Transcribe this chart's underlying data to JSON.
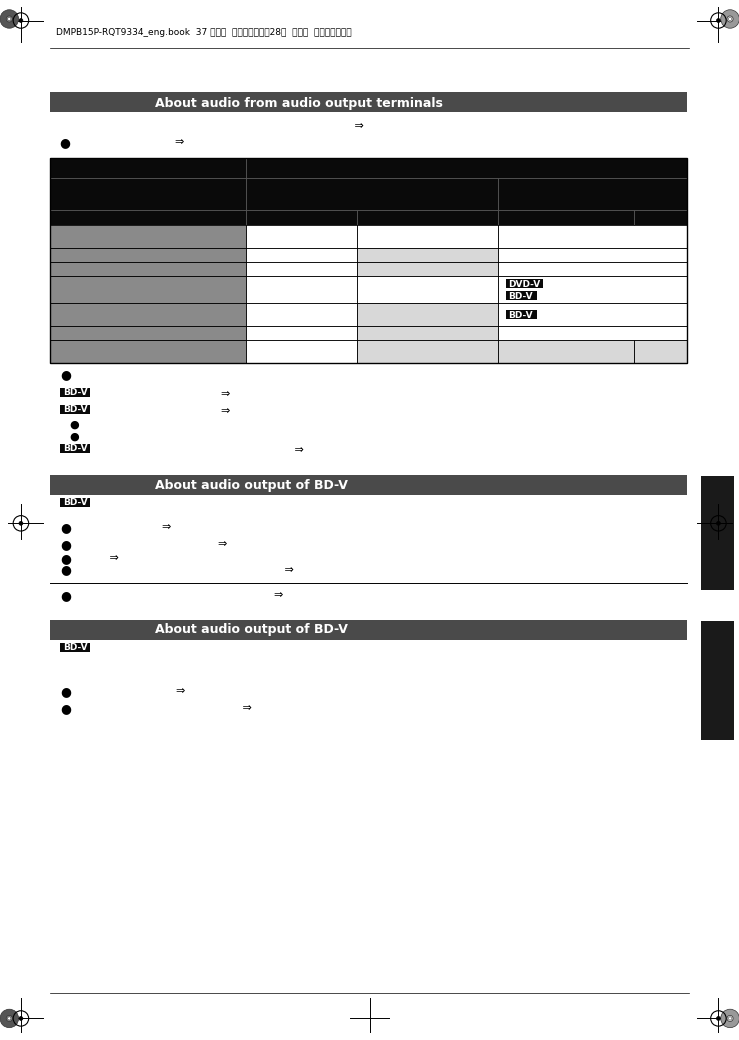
{
  "page_header": "DMPB15P-RQT9334_eng.book  37 ページ  ２００９年３月28日  土曜日  午後２時３９分",
  "bg_dark": "#4a4a4a",
  "bg_black": "#0a0a0a",
  "bg_gray1": "#8a8a8a",
  "bg_gray2": "#9a9a9a",
  "bg_light_gray": "#d8d8d8",
  "bg_white": "#ffffff",
  "bg_sidebar": "#1a1a1a",
  "text_white": "#ffffff",
  "text_black": "#000000",
  "arrow": "⇒"
}
